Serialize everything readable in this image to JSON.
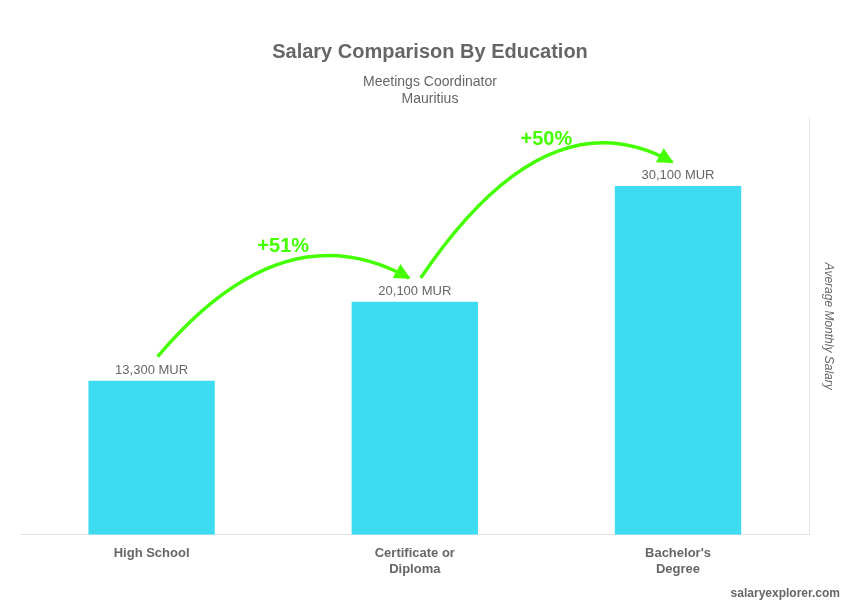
{
  "chart_data": {
    "type": "bar",
    "title": "Salary Comparison By Education",
    "subtitle": [
      "Meetings Coordinator",
      "Mauritius"
    ],
    "ylabel": "Average Monthly Salary",
    "categories": [
      "High School",
      "Certificate or\nDiploma",
      "Bachelor's\nDegree"
    ],
    "values": [
      13300,
      20100,
      30100
    ],
    "value_labels": [
      "13,300 MUR",
      "20,100 MUR",
      "30,100 MUR"
    ],
    "data_labels": true,
    "color": "#3ddcf0",
    "ylim": [
      0,
      36000
    ],
    "yticks": [
      0,
      12000,
      24000,
      36000
    ],
    "tick_labels": "x",
    "grid": false,
    "annotations": [
      {
        "text": "+51%",
        "from": "High School",
        "to": "Certificate or\nDiploma",
        "color": "#44ff00"
      },
      {
        "text": "+50%",
        "from": "Certificate or\nDiploma",
        "to": "Bachelor's\nDegree",
        "color": "#44ff00"
      },
      {
        "text": "salaryexplorer.com"
      }
    ]
  }
}
